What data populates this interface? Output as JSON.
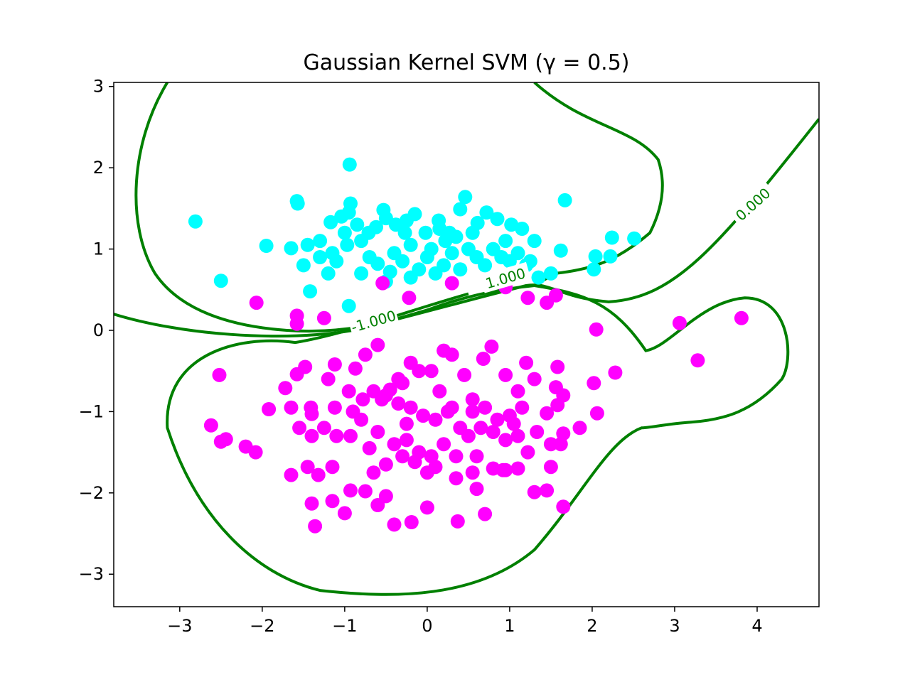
{
  "chart_data": {
    "type": "scatter",
    "title": "Gaussian Kernel SVM (γ = 0.5)",
    "xlabel": "",
    "ylabel": "",
    "xlim": [
      -3.8,
      4.75
    ],
    "ylim": [
      -3.4,
      3.05
    ],
    "xticks": [
      -3,
      -2,
      -1,
      0,
      1,
      2,
      3,
      4
    ],
    "yticks": [
      -3,
      -2,
      -1,
      0,
      1,
      2,
      3
    ],
    "xtick_labels": [
      "−3",
      "−2",
      "−1",
      "0",
      "1",
      "2",
      "3",
      "4"
    ],
    "ytick_labels": [
      "−3",
      "−2",
      "−1",
      "0",
      "1",
      "2",
      "3"
    ],
    "grid": false,
    "legend": "none",
    "colors": {
      "class_pos": "#00ffff",
      "class_neg": "#ff00ff",
      "contour": "#008000"
    },
    "series": [
      {
        "color": "#00ffff",
        "points": [
          [
            -2.81,
            1.34
          ],
          [
            -2.5,
            0.61
          ],
          [
            -1.95,
            1.04
          ],
          [
            -1.58,
            1.59
          ],
          [
            -1.57,
            1.56
          ],
          [
            -1.45,
            1.05
          ],
          [
            -1.42,
            0.48
          ],
          [
            -1.17,
            1.33
          ],
          [
            -0.94,
            2.04
          ],
          [
            -0.93,
            1.56
          ],
          [
            -0.95,
            1.45
          ],
          [
            -1.04,
            1.4
          ],
          [
            -0.97,
            1.05
          ],
          [
            -0.85,
            1.3
          ],
          [
            -0.71,
            1.2
          ],
          [
            -0.62,
            1.27
          ],
          [
            -0.53,
            1.48
          ],
          [
            -0.5,
            1.38
          ],
          [
            -0.38,
            1.3
          ],
          [
            -0.27,
            1.2
          ],
          [
            -0.15,
            1.43
          ],
          [
            -0.02,
            1.2
          ],
          [
            0.14,
            1.35
          ],
          [
            0.27,
            1.2
          ],
          [
            0.4,
            1.49
          ],
          [
            0.46,
            1.64
          ],
          [
            0.61,
            1.32
          ],
          [
            0.72,
            1.45
          ],
          [
            0.85,
            1.37
          ],
          [
            1.02,
            1.3
          ],
          [
            1.15,
            1.25
          ],
          [
            1.3,
            1.1
          ],
          [
            1.67,
            1.6
          ],
          [
            2.24,
            1.14
          ],
          [
            2.51,
            1.13
          ],
          [
            -1.5,
            0.8
          ],
          [
            -1.65,
            1.01
          ],
          [
            -1.3,
            0.9
          ],
          [
            -1.2,
            0.7
          ],
          [
            -1.1,
            0.85
          ],
          [
            -0.95,
            0.3
          ],
          [
            -0.8,
            0.7
          ],
          [
            -0.7,
            0.9
          ],
          [
            -0.6,
            0.82
          ],
          [
            -0.45,
            0.72
          ],
          [
            -0.4,
            0.95
          ],
          [
            -0.3,
            0.85
          ],
          [
            -0.2,
            0.65
          ],
          [
            -0.1,
            0.75
          ],
          [
            0.0,
            0.9
          ],
          [
            0.1,
            0.7
          ],
          [
            0.2,
            0.8
          ],
          [
            0.3,
            0.95
          ],
          [
            0.4,
            0.75
          ],
          [
            0.5,
            1.0
          ],
          [
            0.6,
            0.9
          ],
          [
            0.7,
            0.8
          ],
          [
            0.8,
            1.0
          ],
          [
            0.9,
            0.9
          ],
          [
            1.0,
            0.85
          ],
          [
            1.1,
            0.95
          ],
          [
            1.2,
            0.8
          ],
          [
            1.35,
            0.65
          ],
          [
            1.5,
            0.7
          ],
          [
            1.62,
            0.98
          ],
          [
            2.02,
            0.75
          ],
          [
            2.04,
            0.91
          ],
          [
            2.22,
            0.91
          ],
          [
            -0.5,
            0.6
          ],
          [
            -0.2,
            1.05
          ],
          [
            0.05,
            1.0
          ],
          [
            0.22,
            1.1
          ],
          [
            0.35,
            1.15
          ],
          [
            0.55,
            1.2
          ],
          [
            -1.0,
            1.2
          ],
          [
            -0.8,
            1.1
          ],
          [
            0.95,
            1.1
          ],
          [
            1.25,
            0.85
          ],
          [
            -1.3,
            1.1
          ],
          [
            -1.15,
            0.95
          ],
          [
            -0.25,
            1.35
          ],
          [
            0.15,
            1.25
          ]
        ]
      },
      {
        "color": "#ff00ff",
        "points": [
          [
            -2.07,
            0.34
          ],
          [
            -1.58,
            0.18
          ],
          [
            -1.58,
            0.08
          ],
          [
            -1.25,
            0.15
          ],
          [
            -0.54,
            0.58
          ],
          [
            -0.22,
            0.4
          ],
          [
            0.3,
            0.58
          ],
          [
            0.95,
            0.53
          ],
          [
            1.22,
            0.4
          ],
          [
            1.56,
            0.43
          ],
          [
            1.45,
            0.34
          ],
          [
            2.05,
            0.01
          ],
          [
            3.06,
            0.09
          ],
          [
            3.81,
            0.15
          ],
          [
            -2.52,
            -0.55
          ],
          [
            -1.72,
            -0.71
          ],
          [
            -1.58,
            -0.54
          ],
          [
            -1.48,
            -0.45
          ],
          [
            -1.2,
            -0.6
          ],
          [
            -1.12,
            -0.42
          ],
          [
            -0.95,
            -0.75
          ],
          [
            -0.87,
            -0.47
          ],
          [
            -0.75,
            -0.3
          ],
          [
            -0.6,
            -0.18
          ],
          [
            -0.45,
            -0.73
          ],
          [
            -0.3,
            -0.65
          ],
          [
            -0.2,
            -0.4
          ],
          [
            -0.1,
            -0.5
          ],
          [
            0.05,
            -0.5
          ],
          [
            0.2,
            -0.25
          ],
          [
            0.3,
            -0.3
          ],
          [
            0.45,
            -0.55
          ],
          [
            0.55,
            -0.85
          ],
          [
            0.68,
            -0.35
          ],
          [
            0.78,
            -0.2
          ],
          [
            0.95,
            -0.55
          ],
          [
            1.1,
            -0.75
          ],
          [
            1.2,
            -0.4
          ],
          [
            1.3,
            -0.6
          ],
          [
            1.58,
            -0.45
          ],
          [
            1.56,
            -0.7
          ],
          [
            1.65,
            -0.8
          ],
          [
            2.02,
            -0.65
          ],
          [
            2.28,
            -0.52
          ],
          [
            3.28,
            -0.37
          ],
          [
            -1.92,
            -0.97
          ],
          [
            -1.65,
            -0.95
          ],
          [
            -1.41,
            -0.95
          ],
          [
            -1.4,
            -1.03
          ],
          [
            -1.25,
            -1.2
          ],
          [
            -1.12,
            -0.95
          ],
          [
            -0.9,
            -1.0
          ],
          [
            -0.78,
            -0.85
          ],
          [
            -0.65,
            -0.75
          ],
          [
            -0.5,
            -0.8
          ],
          [
            -0.35,
            -0.9
          ],
          [
            -0.2,
            -0.95
          ],
          [
            -0.05,
            -1.05
          ],
          [
            0.1,
            -1.1
          ],
          [
            0.25,
            -1.0
          ],
          [
            0.4,
            -1.2
          ],
          [
            0.55,
            -1.0
          ],
          [
            0.7,
            -0.95
          ],
          [
            0.85,
            -1.1
          ],
          [
            1.0,
            -1.05
          ],
          [
            1.15,
            -0.95
          ],
          [
            1.45,
            -1.02
          ],
          [
            1.58,
            -0.92
          ],
          [
            2.06,
            -1.02
          ],
          [
            -2.62,
            -1.17
          ],
          [
            -2.5,
            -1.37
          ],
          [
            -2.44,
            -1.34
          ],
          [
            -2.2,
            -1.43
          ],
          [
            -2.08,
            -1.5
          ],
          [
            -1.55,
            -1.2
          ],
          [
            -1.4,
            -1.3
          ],
          [
            -1.1,
            -1.3
          ],
          [
            -0.93,
            -1.3
          ],
          [
            -0.7,
            -1.45
          ],
          [
            -0.6,
            -1.25
          ],
          [
            -0.4,
            -1.4
          ],
          [
            -0.25,
            -1.35
          ],
          [
            -0.1,
            -1.5
          ],
          [
            0.05,
            -1.55
          ],
          [
            0.2,
            -1.4
          ],
          [
            0.35,
            -1.55
          ],
          [
            0.5,
            -1.3
          ],
          [
            0.65,
            -1.2
          ],
          [
            0.8,
            -1.25
          ],
          [
            0.95,
            -1.35
          ],
          [
            1.1,
            -1.3
          ],
          [
            1.22,
            -1.5
          ],
          [
            1.33,
            -1.25
          ],
          [
            1.5,
            -1.4
          ],
          [
            1.62,
            -1.4
          ],
          [
            1.65,
            -1.27
          ],
          [
            1.85,
            -1.2
          ],
          [
            -1.65,
            -1.78
          ],
          [
            -1.45,
            -1.68
          ],
          [
            -1.32,
            -1.78
          ],
          [
            -1.15,
            -1.68
          ],
          [
            -0.65,
            -1.75
          ],
          [
            -0.5,
            -1.65
          ],
          [
            -0.3,
            -1.55
          ],
          [
            -0.15,
            -1.62
          ],
          [
            0.0,
            -1.75
          ],
          [
            0.1,
            -1.68
          ],
          [
            0.35,
            -1.82
          ],
          [
            0.55,
            -1.75
          ],
          [
            0.6,
            -1.95
          ],
          [
            0.8,
            -1.7
          ],
          [
            0.95,
            -1.72
          ],
          [
            1.1,
            -1.7
          ],
          [
            1.5,
            -1.68
          ],
          [
            -1.4,
            -2.13
          ],
          [
            -1.15,
            -2.1
          ],
          [
            -0.93,
            -1.97
          ],
          [
            -0.75,
            -1.98
          ],
          [
            -0.6,
            -2.15
          ],
          [
            -0.5,
            -2.04
          ],
          [
            -0.4,
            -2.39
          ],
          [
            -0.19,
            -2.36
          ],
          [
            0.0,
            -2.18
          ],
          [
            0.37,
            -2.35
          ],
          [
            0.7,
            -2.26
          ],
          [
            0.92,
            -1.72
          ],
          [
            1.3,
            -1.99
          ],
          [
            1.45,
            -1.97
          ],
          [
            1.65,
            -2.17
          ],
          [
            -1.36,
            -2.41
          ],
          [
            -1.0,
            -2.25
          ],
          [
            -0.8,
            -1.1
          ],
          [
            -0.55,
            -0.85
          ],
          [
            0.15,
            -0.75
          ],
          [
            0.3,
            -0.95
          ],
          [
            -0.25,
            -1.15
          ],
          [
            0.6,
            -1.55
          ],
          [
            1.05,
            -1.15
          ],
          [
            -0.35,
            -0.6
          ]
        ]
      }
    ],
    "contours": [
      {
        "level": "0.000",
        "paths": [
          "M -3.8 0.2 C -3.0 -0.05 -1.8 -0.15 -0.9 0.0 C -0.1 0.2 0.6 0.4 1.2 0.55 C 1.5 0.6 1.6 0.4 2.2 0.35 C 3.0 0.4 3.5 1.0 4.75 2.6",
          "M 1.3 0.55 C 1.9 0.45 2.25 0.35 2.65 -0.25 C 2.95 -0.2 3.3 0.35 3.85 0.4 C 4.4 0.4 4.45 -0.35 4.3 -0.6 C 3.95 -1.0 3.6 -1.1 3.2 -1.13 C 2.9 -1.15 2.7 -1.2 2.6 -1.2 C 2.2 -1.35 1.9 -2.0 1.3 -2.7 C 0.6 -3.3 -0.4 -3.3 -1.3 -3.2 C -2.1 -3.0 -2.8 -2.3 -3.15 -1.2 C -3.2 -0.3 -2.3 -0.05 -1.6 -0.15 C -1.0 -0.05 -0.2 0.25 0.5 0.45"
        ]
      },
      {
        "level": "1.000",
        "paths": [
          "M -3.15 3.05 C -3.6 2.3 -3.65 1.3 -3.3 0.7 C -3.0 0.25 -2.4 0.05 -1.7 0.0 C -1.0 -0.05 -0.5 0.1 0.0 0.25 C 0.4 0.4 0.8 0.5 1.3 0.55 L 1.55 0.7 C 2.0 0.75 2.3 0.85 2.7 1.2 C 2.85 1.5 2.9 1.8 2.8 2.1 C 2.5 2.5 1.9 2.5 1.3 3.05"
        ]
      }
    ],
    "contour_labels": [
      {
        "text": "0.000",
        "x": 3.95,
        "y": 1.55,
        "angle": -42
      },
      {
        "text": "1.000",
        "x": 0.95,
        "y": 0.64,
        "angle": -16
      },
      {
        "text": "-1.000",
        "x": -0.65,
        "y": 0.11,
        "angle": -16
      }
    ]
  }
}
